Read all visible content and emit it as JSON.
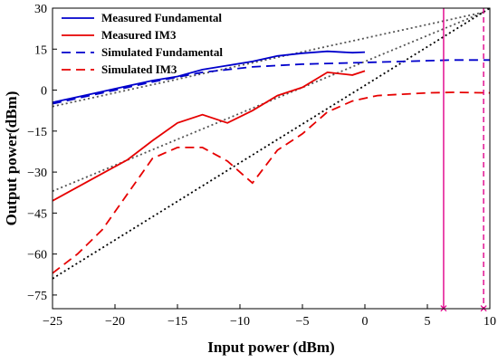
{
  "chart_data": {
    "type": "line",
    "xlabel": "Input power (dBm)",
    "ylabel": "Output power(dBm)",
    "xlim": [
      -25,
      10
    ],
    "ylim": [
      -80,
      30
    ],
    "xticks": [
      -25,
      -20,
      -15,
      -10,
      -5,
      0,
      5,
      10
    ],
    "yticks": [
      -75,
      -60,
      -45,
      -30,
      -15,
      0,
      15,
      30
    ],
    "grid": false,
    "legend_position": "top-left",
    "series": [
      {
        "name": "Measured Fundamental",
        "color": "#0000cc",
        "style": "solid",
        "x": [
          -25,
          -23,
          -21,
          -19,
          -17,
          -15,
          -13,
          -11,
          -9,
          -7,
          -5,
          -3,
          -1,
          0
        ],
        "y": [
          -4.5,
          -2.5,
          -0.5,
          1.5,
          3.5,
          5.0,
          7.5,
          9.0,
          10.5,
          12.5,
          13.5,
          14.2,
          13.7,
          13.9
        ]
      },
      {
        "name": "Measured IM3",
        "color": "#e60000",
        "style": "solid",
        "x": [
          -25,
          -23,
          -21,
          -19,
          -17,
          -15,
          -13,
          -11,
          -9,
          -7,
          -5,
          -3,
          -1,
          0
        ],
        "y": [
          -40.5,
          -35.5,
          -30.5,
          -25.5,
          -18.5,
          -12.0,
          -9.0,
          -12.0,
          -7.5,
          -2.0,
          1.0,
          6.5,
          5.5,
          7.0
        ]
      },
      {
        "name": "Simulated Fundamental",
        "color": "#0000cc",
        "style": "dashed",
        "x": [
          -25,
          -21,
          -17,
          -13,
          -9,
          -5,
          -1,
          3,
          7,
          10
        ],
        "y": [
          -5,
          -1,
          3,
          6.5,
          8.5,
          9.5,
          10.0,
          10.5,
          11.0,
          11.0
        ]
      },
      {
        "name": "Simulated IM3",
        "color": "#e60000",
        "style": "dashed",
        "x": [
          -25,
          -23,
          -21,
          -19,
          -17,
          -15,
          -13,
          -11,
          -9,
          -7,
          -5,
          -3,
          -1,
          1,
          3,
          5,
          7,
          10
        ],
        "y": [
          -67,
          -60,
          -51,
          -38,
          -25,
          -21,
          -21,
          -26,
          -34,
          -22,
          -16,
          -8,
          -4,
          -2,
          -1.5,
          -1,
          -0.8,
          -1
        ]
      }
    ],
    "extrapolations": [
      {
        "x": [
          -25,
          9.5
        ],
        "y": [
          -6,
          28.5
        ],
        "color": "#555555",
        "style": "dotted"
      },
      {
        "x": [
          -25,
          9.5
        ],
        "y": [
          -37,
          28.5
        ],
        "color": "#555555",
        "style": "dotted"
      },
      {
        "x": [
          -25,
          10
        ],
        "y": [
          -69,
          30
        ],
        "color": "#000000",
        "style": "dotted"
      }
    ],
    "markers": [
      {
        "x": 6.3,
        "color": "#e0008a",
        "style": "solid"
      },
      {
        "x": 9.5,
        "color": "#e0008a",
        "style": "dashed"
      }
    ]
  }
}
